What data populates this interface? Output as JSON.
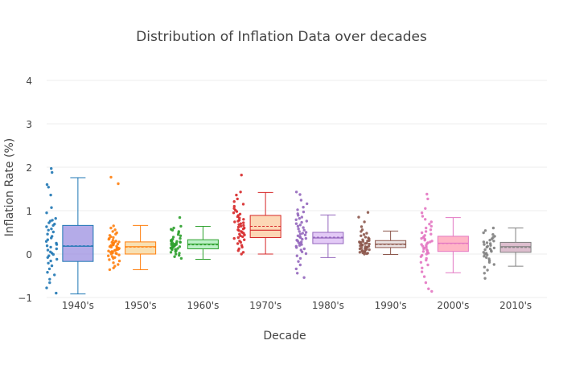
{
  "chart_data": {
    "type": "box",
    "title": "Distribution of Inflation Data over decades",
    "xlabel": "Decade",
    "ylabel": "Inflation Rate (%)",
    "ylim": [
      -1,
      4.6
    ],
    "yticks": [
      -1,
      0,
      1,
      2,
      3,
      4
    ],
    "grid": true,
    "legend": "none",
    "categories": [
      "1940's",
      "1950's",
      "1960's",
      "1970's",
      "1980's",
      "1990's",
      "2000's",
      "2010's"
    ],
    "series": [
      {
        "category": "1940's",
        "color": "#1f77b4",
        "fill": "#9b8fe0",
        "min": -0.92,
        "q1": -0.17,
        "median": 0.18,
        "mean": 0.19,
        "q3": 0.66,
        "max": 1.76,
        "points": [
          1.97,
          1.88,
          1.6,
          1.54,
          1.36,
          1.07,
          0.95,
          0.82,
          0.78,
          0.76,
          0.72,
          0.69,
          0.66,
          0.63,
          0.58,
          0.55,
          0.51,
          0.46,
          0.41,
          0.37,
          0.33,
          0.29,
          0.25,
          0.22,
          0.19,
          0.16,
          0.12,
          0.09,
          0.05,
          0.02,
          -0.01,
          -0.04,
          -0.08,
          -0.12,
          -0.16,
          -0.21,
          -0.27,
          -0.34,
          -0.42,
          -0.48,
          -0.58,
          -0.66,
          -0.78,
          -0.9
        ]
      },
      {
        "category": "1950's",
        "color": "#ff7f0e",
        "fill": "#f5d59a",
        "min": -0.36,
        "q1": 0.0,
        "median": 0.17,
        "mean": 0.16,
        "q3": 0.28,
        "max": 0.66,
        "points": [
          1.77,
          1.62,
          0.65,
          0.6,
          0.56,
          0.52,
          0.49,
          0.46,
          0.43,
          0.4,
          0.38,
          0.36,
          0.34,
          0.32,
          0.3,
          0.29,
          0.28,
          0.27,
          0.26,
          0.25,
          0.24,
          0.23,
          0.22,
          0.21,
          0.2,
          0.19,
          0.18,
          0.17,
          0.16,
          0.15,
          0.14,
          0.13,
          0.12,
          0.11,
          0.1,
          0.09,
          0.08,
          0.07,
          0.06,
          0.05,
          0.04,
          0.03,
          0.02,
          0.01,
          0.0,
          -0.02,
          -0.04,
          -0.06,
          -0.08,
          -0.1,
          -0.13,
          -0.16,
          -0.2,
          -0.24,
          -0.28,
          -0.32,
          -0.36
        ]
      },
      {
        "category": "1960's",
        "color": "#2ca02c",
        "fill": "#a6ecb4",
        "min": -0.12,
        "q1": 0.12,
        "median": 0.23,
        "mean": 0.21,
        "q3": 0.33,
        "max": 0.64,
        "points": [
          0.84,
          0.64,
          0.6,
          0.57,
          0.55,
          0.52,
          0.49,
          0.45,
          0.42,
          0.39,
          0.36,
          0.34,
          0.32,
          0.31,
          0.3,
          0.29,
          0.28,
          0.27,
          0.26,
          0.25,
          0.24,
          0.23,
          0.22,
          0.21,
          0.2,
          0.19,
          0.18,
          0.17,
          0.16,
          0.15,
          0.14,
          0.13,
          0.12,
          0.11,
          0.1,
          0.08,
          0.06,
          0.04,
          0.02,
          0.0,
          -0.03,
          -0.06,
          -0.1
        ]
      },
      {
        "category": "1970's",
        "color": "#d62728",
        "fill": "#fbc99c",
        "min": 0.0,
        "q1": 0.38,
        "median": 0.55,
        "mean": 0.64,
        "q3": 0.89,
        "max": 1.42,
        "points": [
          1.82,
          1.43,
          1.36,
          1.27,
          1.21,
          1.15,
          1.1,
          1.05,
          1.01,
          0.98,
          0.95,
          0.92,
          0.89,
          0.86,
          0.83,
          0.8,
          0.78,
          0.76,
          0.74,
          0.72,
          0.7,
          0.68,
          0.66,
          0.64,
          0.62,
          0.6,
          0.58,
          0.56,
          0.54,
          0.52,
          0.5,
          0.48,
          0.46,
          0.44,
          0.42,
          0.4,
          0.38,
          0.36,
          0.33,
          0.3,
          0.27,
          0.24,
          0.2,
          0.16,
          0.12,
          0.08,
          0.04,
          0.0
        ]
      },
      {
        "category": "1980's",
        "color": "#9467bd",
        "fill": "#dab8f3",
        "min": -0.08,
        "q1": 0.24,
        "median": 0.37,
        "mean": 0.39,
        "q3": 0.5,
        "max": 0.9,
        "points": [
          1.43,
          1.37,
          1.24,
          1.16,
          1.08,
          1.02,
          0.97,
          0.93,
          0.89,
          0.85,
          0.82,
          0.79,
          0.76,
          0.73,
          0.7,
          0.67,
          0.64,
          0.61,
          0.58,
          0.55,
          0.52,
          0.5,
          0.48,
          0.46,
          0.44,
          0.42,
          0.4,
          0.38,
          0.36,
          0.34,
          0.32,
          0.3,
          0.28,
          0.26,
          0.24,
          0.22,
          0.2,
          0.18,
          0.15,
          0.12,
          0.09,
          0.05,
          0.01,
          -0.04,
          -0.1,
          -0.17,
          -0.25,
          -0.34,
          -0.44,
          -0.54
        ]
      },
      {
        "category": "1990's",
        "color": "#8c564b",
        "fill": "#e3d8d8",
        "min": -0.01,
        "q1": 0.15,
        "median": 0.23,
        "mean": 0.22,
        "q3": 0.31,
        "max": 0.53,
        "points": [
          0.96,
          0.85,
          0.74,
          0.63,
          0.56,
          0.52,
          0.48,
          0.45,
          0.42,
          0.39,
          0.37,
          0.35,
          0.33,
          0.31,
          0.3,
          0.29,
          0.28,
          0.27,
          0.26,
          0.25,
          0.24,
          0.23,
          0.22,
          0.21,
          0.2,
          0.19,
          0.18,
          0.17,
          0.16,
          0.15,
          0.14,
          0.13,
          0.12,
          0.11,
          0.1,
          0.09,
          0.08,
          0.07,
          0.06,
          0.05,
          0.04,
          0.03,
          0.02,
          0.01,
          0.0
        ]
      },
      {
        "category": "2000's",
        "color": "#e377c2",
        "fill": "#ff9cb3",
        "min": -0.43,
        "q1": 0.06,
        "median": 0.25,
        "mean": 0.24,
        "q3": 0.41,
        "max": 0.84,
        "points": [
          1.38,
          1.27,
          1.05,
          0.95,
          0.87,
          0.8,
          0.74,
          0.69,
          0.64,
          0.6,
          0.56,
          0.52,
          0.49,
          0.46,
          0.43,
          0.4,
          0.38,
          0.36,
          0.34,
          0.32,
          0.3,
          0.28,
          0.26,
          0.24,
          0.22,
          0.2,
          0.18,
          0.16,
          0.14,
          0.12,
          0.1,
          0.08,
          0.06,
          0.04,
          0.02,
          0.0,
          -0.03,
          -0.06,
          -0.1,
          -0.14,
          -0.19,
          -0.25,
          -0.32,
          -0.41,
          -0.52,
          -0.66,
          -0.8,
          -0.86
        ]
      },
      {
        "category": "2010's",
        "color": "#7f7f7f",
        "fill": "#d2a8bd",
        "min": -0.28,
        "q1": 0.04,
        "median": 0.17,
        "mean": 0.15,
        "q3": 0.27,
        "max": 0.6,
        "points": [
          0.6,
          0.54,
          0.49,
          0.45,
          0.41,
          0.38,
          0.35,
          0.32,
          0.3,
          0.28,
          0.26,
          0.24,
          0.22,
          0.2,
          0.18,
          0.16,
          0.14,
          0.12,
          0.1,
          0.08,
          0.06,
          0.04,
          0.02,
          0.0,
          -0.02,
          -0.05,
          -0.08,
          -0.11,
          -0.15,
          -0.19,
          -0.24,
          -0.3,
          -0.37,
          -0.44,
          -0.56
        ]
      }
    ]
  }
}
